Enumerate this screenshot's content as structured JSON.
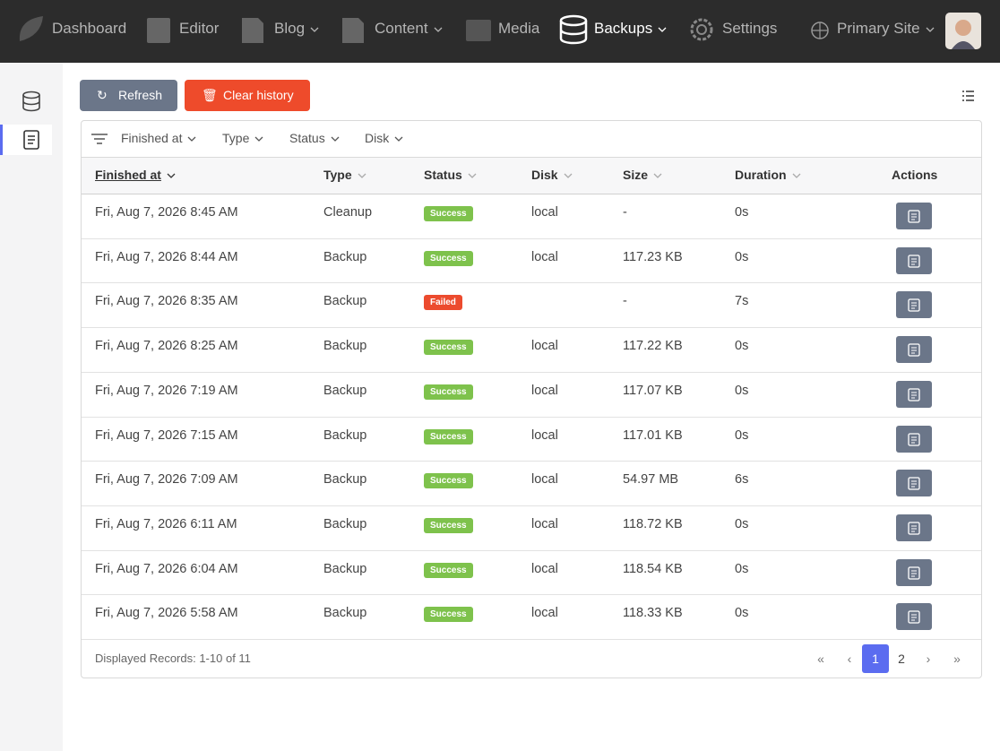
{
  "nav": {
    "items": [
      "Dashboard",
      "Editor",
      "Blog",
      "Content",
      "Media",
      "Backups",
      "Settings"
    ],
    "site": "Primary Site"
  },
  "toolbar": {
    "refresh": "Refresh",
    "clear": "Clear history"
  },
  "filters": [
    "Finished at",
    "Type",
    "Status",
    "Disk"
  ],
  "table": {
    "columns": [
      "Finished at",
      "Type",
      "Status",
      "Disk",
      "Size",
      "Duration",
      "Actions"
    ],
    "rows": [
      [
        "Fri, Aug 7, 2026 8:45 AM",
        "Cleanup",
        "Success",
        "local",
        "-",
        "0s"
      ],
      [
        "Fri, Aug 7, 2026 8:44 AM",
        "Backup",
        "Success",
        "local",
        "117.23 KB",
        "0s"
      ],
      [
        "Fri, Aug 7, 2026 8:35 AM",
        "Backup",
        "Failed",
        null,
        "-",
        "7s"
      ],
      [
        "Fri, Aug 7, 2026 8:25 AM",
        "Backup",
        "Success",
        "local",
        "117.22 KB",
        "0s"
      ],
      [
        "Fri, Aug 7, 2026 7:19 AM",
        "Backup",
        "Success",
        "local",
        "117.07 KB",
        "0s"
      ],
      [
        "Fri, Aug 7, 2026 7:15 AM",
        "Backup",
        "Success",
        "local",
        "117.01 KB",
        "0s"
      ],
      [
        "Fri, Aug 7, 2026 7:09 AM",
        "Backup",
        "Success",
        "local",
        "54.97 MB",
        "6s"
      ],
      [
        "Fri, Aug 7, 2026 6:11 AM",
        "Backup",
        "Success",
        "local",
        "118.72 KB",
        "0s"
      ],
      [
        "Fri, Aug 7, 2026 6:04 AM",
        "Backup",
        "Success",
        "local",
        "118.54 KB",
        "0s"
      ],
      [
        "Fri, Aug 7, 2026 5:58 AM",
        "Backup",
        "Success",
        "local",
        "118.33 KB",
        "0s"
      ]
    ]
  },
  "footer": {
    "records": "Displayed Records: 1-10 of 11",
    "pages": [
      1,
      2
    ]
  }
}
